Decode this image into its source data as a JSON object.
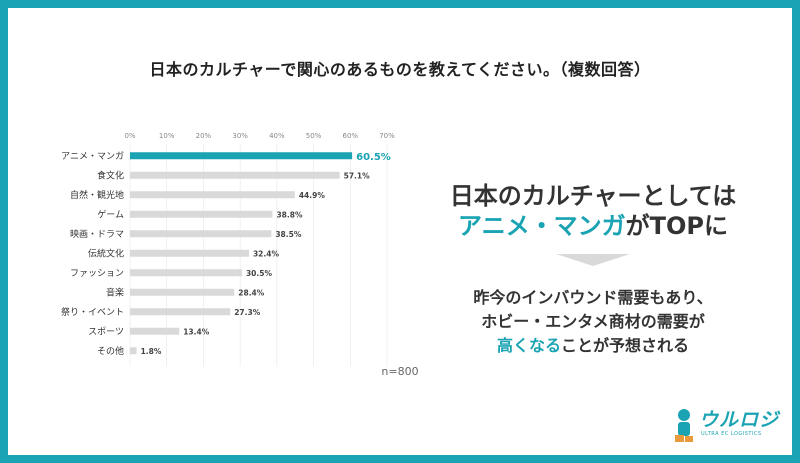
{
  "title": "日本のカルチャーで関心のあるものを教えてください。（複数回答）",
  "headline": {
    "line1": "日本のカルチャーとしては",
    "line2_highlight": "アニメ・マンガ",
    "line2_rest": "がTOPに"
  },
  "body": {
    "line1": "昨今のインバウンド需要もあり、",
    "line2": "ホビー・エンタメ商材の需要が",
    "line3_highlight": "高くなる",
    "line3_rest": "ことが予想される"
  },
  "logo": {
    "name": "ウルロジ",
    "tagline": "ULTRA EC LOGISTICS"
  },
  "colors": {
    "accent": "#1aa3b3",
    "bar": "#d9d9d9",
    "grid": "#e6e6e6"
  },
  "chart_data": {
    "type": "bar",
    "orientation": "horizontal",
    "title": "日本のカルチャーで関心のあるものを教えてください。（複数回答）",
    "categories": [
      "アニメ・マンガ",
      "食文化",
      "自然・観光地",
      "ゲーム",
      "映画・ドラマ",
      "伝統文化",
      "ファッション",
      "音楽",
      "祭り・イベント",
      "スポーツ",
      "その他"
    ],
    "values": [
      60.5,
      57.1,
      44.9,
      38.8,
      38.5,
      32.4,
      30.5,
      28.4,
      27.3,
      13.4,
      1.8
    ],
    "value_labels": [
      "60.5%",
      "57.1%",
      "44.9%",
      "38.8%",
      "38.5%",
      "32.4%",
      "30.5%",
      "28.4%",
      "27.3%",
      "13.4%",
      "1.8%"
    ],
    "highlight_index": 0,
    "xticks": [
      "0%",
      "10%",
      "20%",
      "30%",
      "40%",
      "50%",
      "60%",
      "70%"
    ],
    "xlim": [
      0,
      70
    ],
    "grid": true,
    "note": "n=800"
  }
}
